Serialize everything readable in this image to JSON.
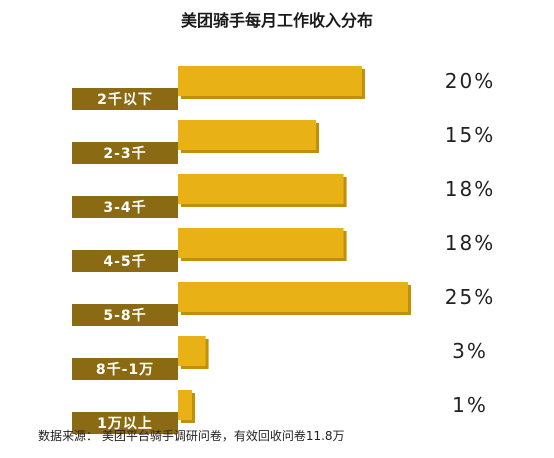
{
  "chart_data": {
    "type": "bar",
    "orientation": "horizontal",
    "title": "美团骑手每月工作收入分布",
    "categories": [
      "2千以下",
      "2-3千",
      "3-4千",
      "4-5千",
      "5-8千",
      "8千-1万",
      "1万以上"
    ],
    "values": [
      20,
      15,
      18,
      18,
      25,
      3,
      1
    ],
    "value_labels": [
      "20%",
      "15%",
      "18%",
      "18%",
      "25%",
      "3%",
      "1%"
    ],
    "unit": "%",
    "xlim": [
      0,
      25
    ],
    "grid": false,
    "legend": "none",
    "source": "数据来源： 美团平台骑手调研问卷，有效回收问卷11.8万"
  },
  "colors": {
    "bar": "#e8b217",
    "bar_shadow": "#c08f0c",
    "label_bg": "#8a6a12",
    "label_text": "#ffffff"
  }
}
